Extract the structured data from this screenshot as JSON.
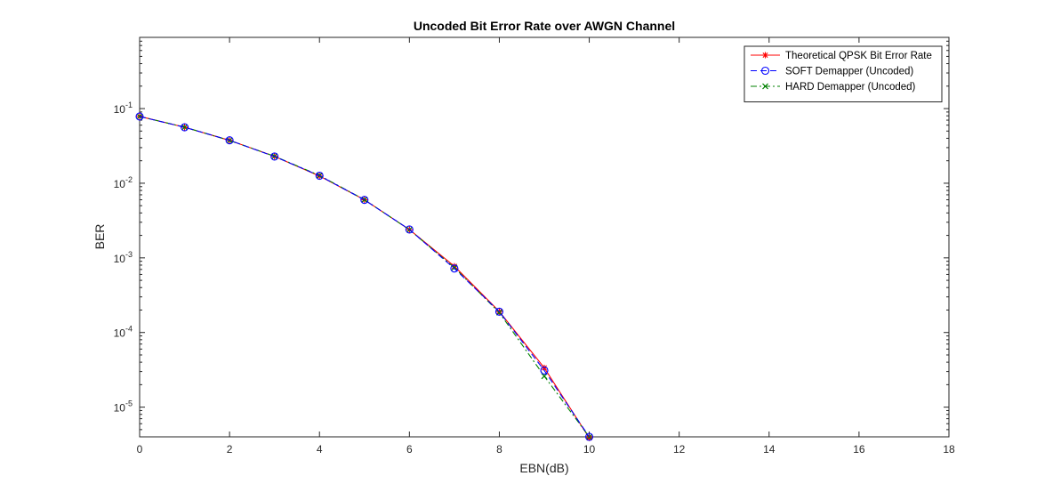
{
  "chart_data": {
    "type": "line",
    "title": "Uncoded Bit Error Rate over AWGN Channel",
    "xlabel": "EBN(dB)",
    "ylabel": "BER",
    "xlim": [
      0,
      18
    ],
    "ylim": [
      4e-06,
      0.9
    ],
    "yscale": "log",
    "xticks": [
      "0",
      "2",
      "4",
      "6",
      "8",
      "10",
      "12",
      "14",
      "16",
      "18"
    ],
    "yticks": [
      {
        "mantissa": "10",
        "exp": "-1"
      },
      {
        "mantissa": "10",
        "exp": "-2"
      },
      {
        "mantissa": "10",
        "exp": "-3"
      },
      {
        "mantissa": "10",
        "exp": "-4"
      },
      {
        "mantissa": "10",
        "exp": "-5"
      }
    ],
    "grid": false,
    "legend_position": "top-right",
    "x": [
      0,
      1,
      2,
      3,
      4,
      5,
      6,
      7,
      8,
      9,
      10
    ],
    "series": [
      {
        "name": "Theoretical QPSK Bit Error Rate",
        "color": "#ff0000",
        "line": "solid",
        "marker": "asterisk",
        "values": [
          0.0786,
          0.0563,
          0.0375,
          0.0229,
          0.0125,
          0.006,
          0.00239,
          0.000773,
          0.000191,
          3.36e-05,
          3.87e-06
        ]
      },
      {
        "name": "SOFT Demapper (Uncoded)",
        "color": "#0000ff",
        "line": "dashed",
        "marker": "circle",
        "values": [
          0.0784,
          0.0562,
          0.0376,
          0.0228,
          0.0126,
          0.00598,
          0.0024,
          0.00072,
          0.00019,
          3.1e-05,
          4e-06
        ]
      },
      {
        "name": "HARD Demapper (Uncoded)",
        "color": "#008000",
        "line": "dashdot",
        "marker": "x",
        "values": [
          0.0785,
          0.0564,
          0.0374,
          0.023,
          0.0127,
          0.00602,
          0.00238,
          0.00074,
          0.000185,
          2.6e-05,
          4e-06
        ]
      }
    ]
  }
}
